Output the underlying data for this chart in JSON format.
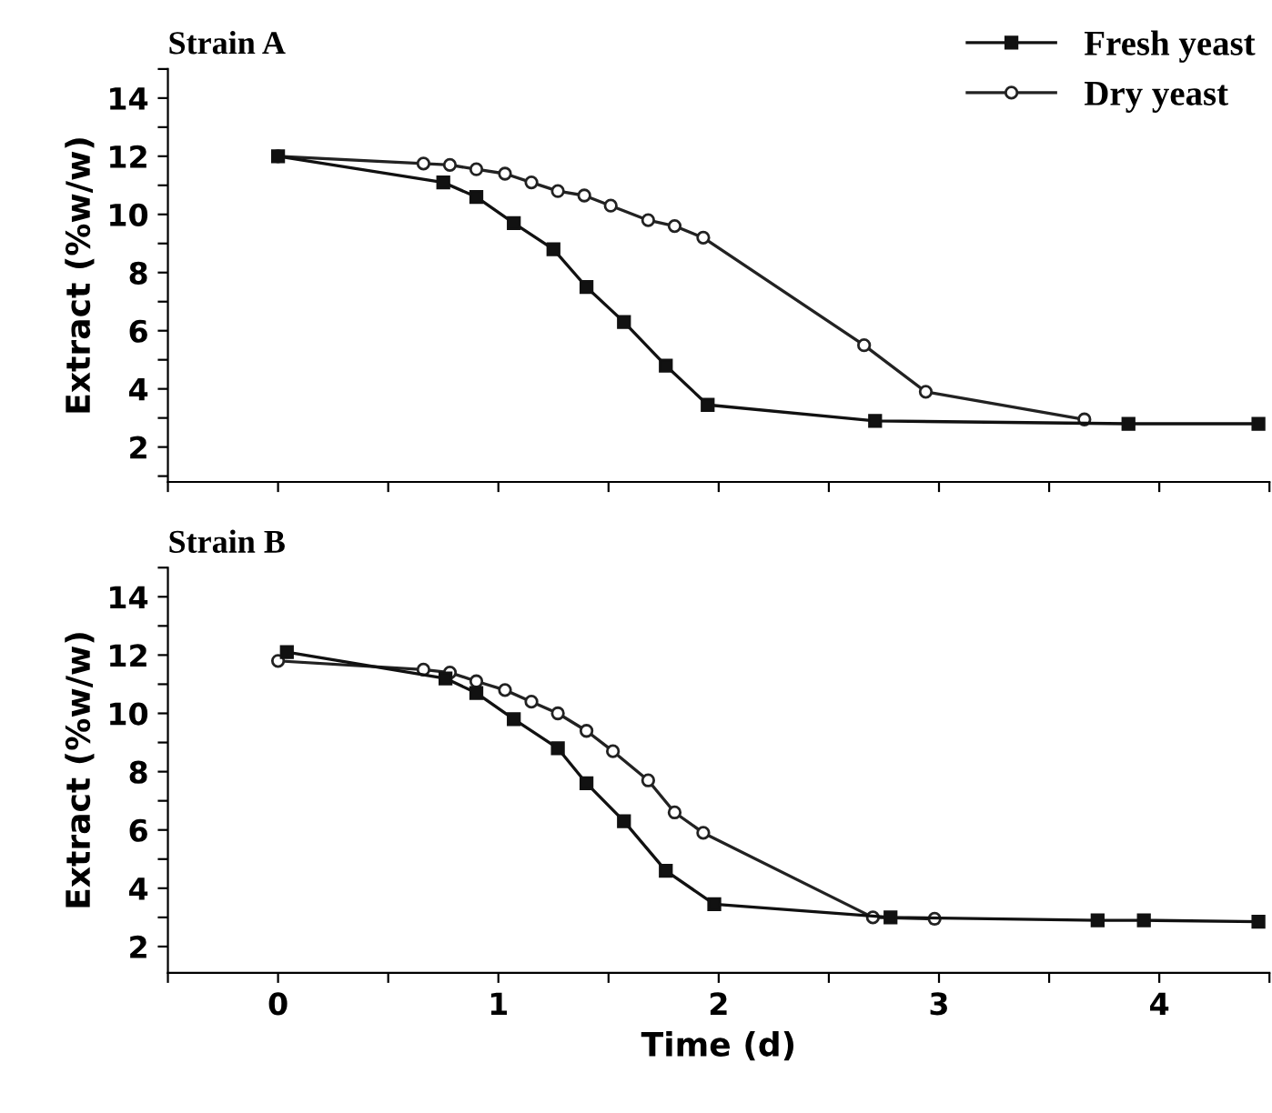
{
  "chart_data": [
    {
      "type": "line",
      "title": "Strain A",
      "ylabel": "Extract (%w/w)",
      "xlim": [
        -0.5,
        4.5
      ],
      "ylim": [
        0.8,
        15
      ],
      "xticks": [
        {
          "value": -0.5,
          "label": null
        },
        {
          "value": 0,
          "label": null
        },
        {
          "value": 0.5,
          "label": null
        },
        {
          "value": 1,
          "label": null
        },
        {
          "value": 1.5,
          "label": null
        },
        {
          "value": 2,
          "label": null
        },
        {
          "value": 2.5,
          "label": null
        },
        {
          "value": 3,
          "label": null
        },
        {
          "value": 3.5,
          "label": null
        },
        {
          "value": 4,
          "label": null
        },
        {
          "value": 4.5,
          "label": null
        }
      ],
      "yticks": [
        {
          "value": 1,
          "label": null
        },
        2,
        {
          "value": 3,
          "label": null
        },
        4,
        {
          "value": 5,
          "label": null
        },
        6,
        {
          "value": 7,
          "label": null
        },
        8,
        {
          "value": 9,
          "label": null
        },
        10,
        {
          "value": 11,
          "label": null
        },
        12,
        {
          "value": 13,
          "label": null
        },
        14,
        {
          "value": 15,
          "label": null
        }
      ],
      "tick_labels": "y",
      "legend": "top right",
      "grid": false,
      "line_style": "solid",
      "series": [
        {
          "name": "Fresh yeast",
          "color": "#111111",
          "marker": "square",
          "x": [
            0,
            0.75,
            0.9,
            1.07,
            1.25,
            1.4,
            1.57,
            1.76,
            1.95,
            2.71,
            3.86,
            4.45
          ],
          "values": [
            12,
            11.1,
            10.6,
            9.7,
            8.8,
            7.5,
            6.3,
            4.8,
            3.45,
            2.9,
            2.8,
            2.8
          ]
        },
        {
          "name": "Dry yeast",
          "color": "#222222",
          "marker": "circle",
          "x": [
            0,
            0.66,
            0.78,
            0.9,
            1.03,
            1.15,
            1.27,
            1.39,
            1.51,
            1.68,
            1.8,
            1.93,
            2.66,
            2.94,
            3.66
          ],
          "values": [
            12,
            11.75,
            11.7,
            11.55,
            11.4,
            11.1,
            10.8,
            10.65,
            10.3,
            9.8,
            9.6,
            9.2,
            5.5,
            3.9,
            2.95
          ]
        }
      ]
    },
    {
      "type": "line",
      "title": "Strain B",
      "ylabel": "Extract (%w/w)",
      "xlabel": "Time (d)",
      "xlim": [
        -0.5,
        4.5
      ],
      "ylim": [
        1.1,
        15
      ],
      "xticks": [
        {
          "value": -0.5,
          "label": null
        },
        0,
        {
          "value": 0.5,
          "label": null
        },
        1,
        {
          "value": 1.5,
          "label": null
        },
        2,
        {
          "value": 2.5,
          "label": null
        },
        3,
        {
          "value": 3.5,
          "label": null
        },
        4,
        {
          "value": 4.5,
          "label": null
        }
      ],
      "yticks": [
        2,
        {
          "value": 3,
          "label": null
        },
        4,
        {
          "value": 5,
          "label": null
        },
        6,
        {
          "value": 7,
          "label": null
        },
        8,
        {
          "value": 9,
          "label": null
        },
        10,
        {
          "value": 11,
          "label": null
        },
        12,
        {
          "value": 13,
          "label": null
        },
        14,
        {
          "value": 15,
          "label": null
        }
      ],
      "grid": false,
      "line_style": "solid",
      "series": [
        {
          "color": "#111111",
          "marker": "square",
          "x": [
            0.04,
            0.76,
            0.9,
            1.07,
            1.27,
            1.4,
            1.57,
            1.76,
            1.98,
            2.78,
            3.72,
            3.93,
            4.45
          ],
          "values": [
            12.1,
            11.2,
            10.7,
            9.8,
            8.8,
            7.6,
            6.3,
            4.6,
            3.45,
            3.0,
            2.9,
            2.9,
            2.85
          ]
        },
        {
          "color": "#222222",
          "marker": "circle",
          "x": [
            0,
            0.66,
            0.78,
            0.9,
            1.03,
            1.15,
            1.27,
            1.4,
            1.52,
            1.68,
            1.8,
            1.93,
            2.7,
            2.98
          ],
          "values": [
            11.8,
            11.5,
            11.4,
            11.1,
            10.8,
            10.4,
            10.0,
            9.4,
            8.7,
            7.7,
            6.6,
            5.9,
            3.0,
            2.95
          ]
        }
      ]
    }
  ]
}
